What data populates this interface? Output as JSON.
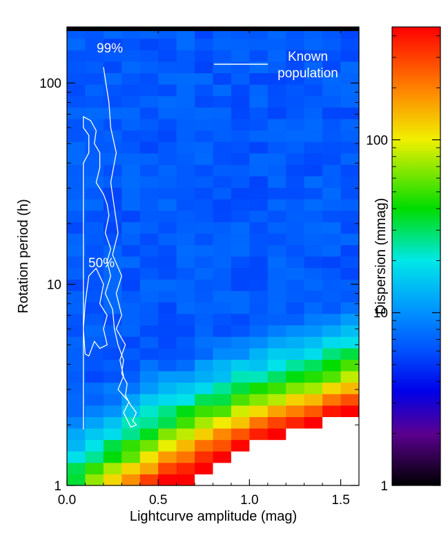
{
  "chart_data": {
    "type": "heatmap",
    "xlabel": "Lightcurve amplitude (mag)",
    "ylabel": "Rotation period (h)",
    "xlim": [
      0.0,
      1.6
    ],
    "ylim": [
      1,
      190
    ],
    "yscale": "log",
    "x_ticks": [
      "0.0",
      "0.5",
      "1.0",
      "1.5"
    ],
    "x_tick_values": [
      0.0,
      0.5,
      1.0,
      1.5
    ],
    "y_ticks": [
      "1",
      "10",
      "100"
    ],
    "y_tick_values": [
      1,
      10,
      100
    ],
    "grid": false,
    "colorbar": {
      "label": "Dispersion (mmag)",
      "scale": "log",
      "range": [
        1,
        450
      ],
      "ticks": [
        "1",
        "10",
        "100"
      ],
      "tick_values": [
        1,
        10,
        100
      ],
      "colormap": "rainbow"
    },
    "annotations": {
      "contour_99": "99%",
      "contour_50": "50%",
      "legend_line1": "Known",
      "legend_line2": "population"
    },
    "contours": [
      {
        "label": "99%",
        "color": "#ffffff",
        "x": [
          0.09,
          0.09,
          0.12,
          0.12,
          0.09,
          0.09,
          0.13,
          0.16,
          0.15,
          0.18,
          0.18,
          0.16,
          0.2,
          0.22,
          0.23,
          0.21,
          0.24,
          0.22,
          0.24,
          0.21,
          0.25,
          0.26,
          0.28,
          0.31,
          0.3,
          0.33,
          0.32,
          0.35,
          0.38,
          0.36,
          0.38,
          0.35,
          0.31,
          0.34,
          0.28,
          0.31,
          0.29,
          0.32,
          0.27,
          0.3,
          0.27,
          0.3,
          0.25,
          0.28,
          0.26,
          0.24,
          0.27,
          0.24,
          0.23,
          0.2
        ],
        "y": [
          1.9,
          40,
          45,
          55,
          60,
          68,
          65,
          58,
          50,
          45,
          38,
          32,
          28,
          25,
          22,
          18,
          15,
          13,
          11,
          9,
          7.5,
          6,
          5,
          4.2,
          3.6,
          3.2,
          2.8,
          2.5,
          2.3,
          2.1,
          2.0,
          1.95,
          2.3,
          2.6,
          3.0,
          3.5,
          4.2,
          5.0,
          6.0,
          7.0,
          9.0,
          11,
          14,
          18,
          24,
          32,
          45,
          60,
          80,
          120
        ]
      },
      {
        "label": "50%",
        "color": "#ffffff",
        "x": [
          0.1,
          0.09,
          0.1,
          0.12,
          0.16,
          0.2,
          0.18,
          0.22,
          0.2,
          0.22,
          0.18,
          0.15,
          0.12,
          0.1
        ],
        "y": [
          4.5,
          6.0,
          8.0,
          11,
          12,
          10,
          8.0,
          7.0,
          6.0,
          5.0,
          4.8,
          5.2,
          4.4,
          4.5
        ]
      }
    ],
    "color_stops": [
      {
        "value": 1,
        "color": "#000000"
      },
      {
        "value": 2,
        "color": "#5a0090"
      },
      {
        "value": 3.5,
        "color": "#0000e8"
      },
      {
        "value": 6,
        "color": "#0050ff"
      },
      {
        "value": 10,
        "color": "#0090ff"
      },
      {
        "value": 20,
        "color": "#00e8e8"
      },
      {
        "value": 40,
        "color": "#00dc00"
      },
      {
        "value": 100,
        "color": "#f0f000"
      },
      {
        "value": 200,
        "color": "#ff8000"
      },
      {
        "value": 450,
        "color": "#ff0000"
      }
    ]
  }
}
